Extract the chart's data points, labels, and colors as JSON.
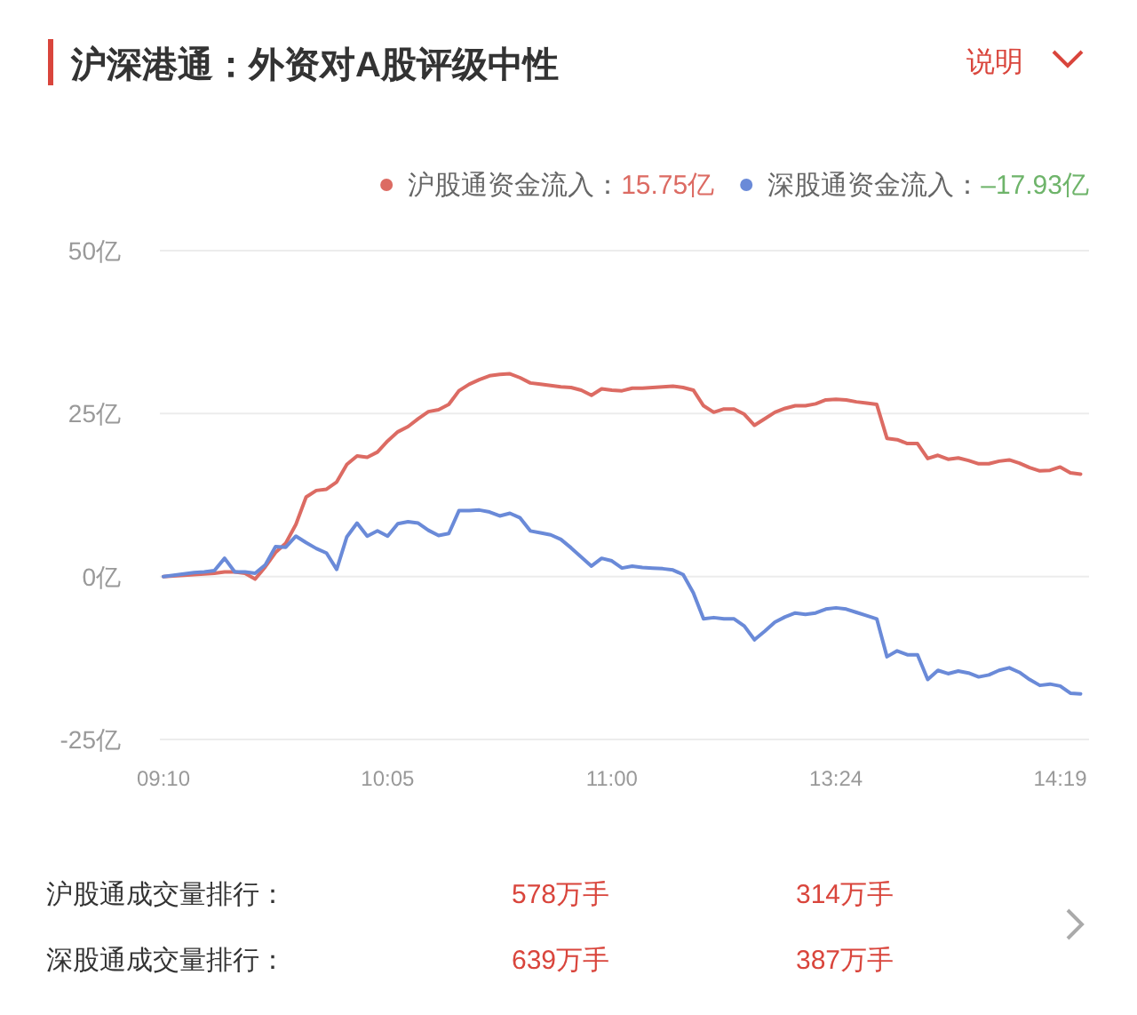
{
  "chart_data": {
    "type": "line",
    "title": "沪深港通：外资对A股评级中性",
    "categories": [
      "09:10",
      null,
      null,
      null,
      null,
      null,
      null,
      null,
      null,
      null,
      null,
      null,
      null,
      null,
      null,
      null,
      null,
      null,
      null,
      null,
      null,
      null,
      "10:05",
      null,
      null,
      null,
      null,
      null,
      null,
      null,
      null,
      null,
      null,
      null,
      null,
      null,
      null,
      null,
      null,
      null,
      null,
      null,
      null,
      null,
      "11:00",
      null,
      null,
      null,
      null,
      null,
      null,
      null,
      null,
      null,
      null,
      null,
      null,
      null,
      null,
      null,
      null,
      null,
      null,
      null,
      null,
      null,
      "13:24",
      null,
      null,
      null,
      null,
      null,
      null,
      null,
      null,
      null,
      null,
      null,
      null,
      null,
      null,
      null,
      null,
      null,
      null,
      null,
      null,
      null,
      "14:19",
      null,
      null
    ],
    "series": [
      {
        "name": "沪股通资金流入：",
        "color": "#dc6b63",
        "values": [
          0,
          0.1,
          0.2,
          0.3,
          0.4,
          0.5,
          0.7,
          0.7,
          0.5,
          -0.4,
          1.5,
          3.7,
          5.1,
          8,
          12.2,
          13.2,
          13.4,
          14.5,
          17.2,
          18.5,
          18.3,
          19.1,
          20.8,
          22.2,
          23,
          24.2,
          25.3,
          25.6,
          26.4,
          28.5,
          29.5,
          30.2,
          30.8,
          31,
          31.1,
          30.5,
          29.7,
          29.5,
          29.3,
          29.1,
          29,
          28.6,
          27.8,
          28.8,
          28.6,
          28.5,
          28.9,
          28.9,
          29,
          29.1,
          29.2,
          29,
          28.6,
          26.2,
          25.2,
          25.7,
          25.7,
          24.9,
          23.2,
          24.2,
          25.2,
          25.8,
          26.2,
          26.2,
          26.5,
          27.1,
          27.2,
          27.1,
          26.8,
          26.6,
          26.4,
          21.2,
          21,
          20.4,
          20.4,
          18.1,
          18.6,
          18,
          18.2,
          17.8,
          17.3,
          17.3,
          17.7,
          17.9,
          17.4,
          16.7,
          16.2,
          16.3,
          16.8,
          15.9,
          15.7
        ]
      },
      {
        "name": "深股通资金流入：",
        "color": "#6a8ad8",
        "values": [
          0,
          0.2,
          0.4,
          0.6,
          0.7,
          0.9,
          2.8,
          0.7,
          0.7,
          0.5,
          1.8,
          4.6,
          4.5,
          6.2,
          5.2,
          4.3,
          3.6,
          1.1,
          6.1,
          8.2,
          6.2,
          7,
          6.2,
          8.1,
          8.4,
          8.2,
          7.1,
          6.3,
          6.6,
          10.1,
          10.1,
          10.2,
          9.9,
          9.3,
          9.7,
          9,
          7,
          6.7,
          6.4,
          5.7,
          4.4,
          3,
          1.6,
          2.8,
          2.4,
          1.3,
          1.6,
          1.4,
          1.3,
          1.2,
          1,
          0.3,
          -2.5,
          -6.5,
          -6.3,
          -6.5,
          -6.5,
          -7.6,
          -9.7,
          -8.4,
          -7,
          -6.2,
          -5.6,
          -5.8,
          -5.6,
          -5,
          -4.8,
          -5,
          -5.5,
          -6,
          -6.5,
          -12.3,
          -11.4,
          -12,
          -12,
          -15.8,
          -14.4,
          -14.9,
          -14.5,
          -14.8,
          -15.4,
          -15.1,
          -14.4,
          -14,
          -14.7,
          -15.8,
          -16.7,
          -16.5,
          -16.8,
          -17.9,
          -18
        ]
      }
    ],
    "ylim": [
      -25,
      50
    ],
    "yticks": [
      {
        "value": -25,
        "label": "-25亿"
      },
      {
        "value": 0,
        "label": "0亿"
      },
      {
        "value": 25,
        "label": "25亿"
      },
      {
        "value": 50,
        "label": "50亿"
      }
    ],
    "grid": "y",
    "legend": "top right",
    "annotations": [
      "说明",
      "15.75亿",
      "–17.93亿",
      "沪股通成交量排行：",
      "578万手",
      "314万手",
      "深股通成交量排行：",
      "639万手",
      "387万手"
    ]
  }
}
